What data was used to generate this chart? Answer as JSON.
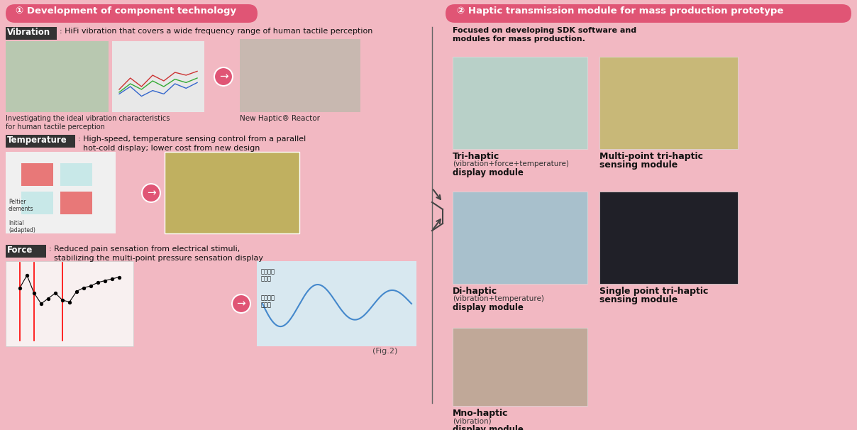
{
  "bg_color": "#f2b8c2",
  "fig_width": 12.08,
  "fig_height": 6.06,
  "left_header": "① Development of component technology",
  "right_header": "② Haptic transmission module for mass production prototype",
  "header_bg": "#e05575",
  "header_text_color": "#ffffff",
  "vibration_label": "Vibration",
  "vibration_text": ": HiFi vibration that covers a wide frequency range of human tactile perception",
  "vibration_sub1": "Investigating the ideal vibration characteristics\nfor human tactile perception",
  "vibration_sub2": "New Haptic® Reactor",
  "temperature_label": "Temperature",
  "temperature_text1": ": High-speed, temperature sensing control from a parallel",
  "temperature_text2": "  hot-cold display; lower cost from new design",
  "force_label": "Force",
  "force_text1": ": Reduced pain sensation from electrical stimuli,",
  "force_text2": "  stabilizing the multi-point pressure sensation display",
  "right_intro": "Focused on developing SDK software and\nmodules for mass production.",
  "tri_haptic_title": "Tri-haptic",
  "tri_haptic_sub1": "(vibration+force+temperature)",
  "tri_haptic_sub2": "display module",
  "multi_point_title": "Multi-point tri-haptic",
  "multi_point_title2": "sensing module",
  "di_haptic_title": "Di-haptic",
  "di_haptic_sub1": "(vibration+temperature)",
  "di_haptic_sub2": "display module",
  "single_point_title1": "Single point tri-haptic",
  "single_point_title2": "sensing module",
  "mno_haptic_title": "Mno-haptic",
  "mno_haptic_sub1": "(vibration)",
  "mno_haptic_sub2": "display module",
  "label_bg": "#333333",
  "label_text_color": "#ffffff",
  "arrow_color": "#e05575",
  "divider_color": "#666666",
  "fig_caption": "(Fig.2)",
  "panel_bg": "#f2b8c2",
  "img_bg_lab": "#b8c8b0",
  "img_bg_graph": "#e8e8e8",
  "img_bg_reactor": "#c8b8b0",
  "img_bg_temp_diag": "#e0c8d0",
  "img_bg_temp_mod": "#c0b060",
  "img_bg_force_chart": "#e8e0e0",
  "img_bg_force_wave": "#c8dce8",
  "img_bg_tri": "#b8d0c8",
  "img_bg_multi": "#c8b878",
  "img_bg_di": "#a8c0cc",
  "img_bg_single": "#202028",
  "img_bg_mno": "#c0a898"
}
